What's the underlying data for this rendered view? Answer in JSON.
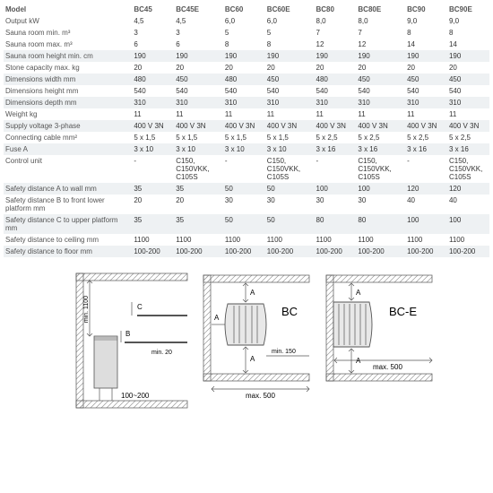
{
  "table": {
    "header": [
      "Model",
      "BC45",
      "BC45E",
      "",
      "BC60",
      "BC60E",
      "",
      "BC80",
      "BC80E",
      "",
      "BC90",
      "BC90E"
    ],
    "rows": [
      {
        "label": "Output kW",
        "v": [
          "4,5",
          "4,5",
          "",
          "6,0",
          "6,0",
          "",
          "8,0",
          "8,0",
          "",
          "9,0",
          "9,0"
        ]
      },
      {
        "label": "Sauna room min. m³",
        "sup": "3",
        "v": [
          "3",
          "3",
          "",
          "5",
          "5",
          "",
          "7",
          "7",
          "",
          "8",
          "8"
        ]
      },
      {
        "label": "Sauna room max. m³",
        "sup": "3",
        "v": [
          "6",
          "6",
          "",
          "8",
          "8",
          "",
          "12",
          "12",
          "",
          "14",
          "14"
        ]
      },
      {
        "label": "Sauna room height min. cm",
        "alt": true,
        "v": [
          "190",
          "190",
          "",
          "190",
          "190",
          "",
          "190",
          "190",
          "",
          "190",
          "190"
        ]
      },
      {
        "label": "Stone capacity max. kg",
        "v": [
          "20",
          "20",
          "",
          "20",
          "20",
          "",
          "20",
          "20",
          "",
          "20",
          "20"
        ]
      },
      {
        "label": "Dimensions width mm",
        "alt": true,
        "v": [
          "480",
          "450",
          "",
          "480",
          "450",
          "",
          "480",
          "450",
          "",
          "450",
          "450"
        ]
      },
      {
        "label": "Dimensions height mm",
        "v": [
          "540",
          "540",
          "",
          "540",
          "540",
          "",
          "540",
          "540",
          "",
          "540",
          "540"
        ]
      },
      {
        "label": "Dimensions depth mm",
        "alt": true,
        "v": [
          "310",
          "310",
          "",
          "310",
          "310",
          "",
          "310",
          "310",
          "",
          "310",
          "310"
        ]
      },
      {
        "label": "Weight kg",
        "v": [
          "11",
          "11",
          "",
          "11",
          "11",
          "",
          "11",
          "11",
          "",
          "11",
          "11"
        ]
      },
      {
        "label": "Supply voltage 3-phase",
        "alt": true,
        "v": [
          "400 V 3N",
          "400 V 3N",
          "",
          "400 V 3N",
          "400 V 3N",
          "",
          "400 V 3N",
          "400 V 3N",
          "",
          "400 V 3N",
          "400 V 3N"
        ]
      },
      {
        "label": "Connecting cable mm²",
        "sup": "2",
        "v": [
          "5 x 1,5",
          "5 x 1,5",
          "",
          "5 x 1,5",
          "5 x 1,5",
          "",
          "5 x 2,5",
          "5 x 2,5",
          "",
          "5 x 2,5",
          "5 x 2,5"
        ]
      },
      {
        "label": "Fuse A",
        "alt": true,
        "v": [
          "3 x 10",
          "3 x 10",
          "",
          "3 x 10",
          "3 x 10",
          "",
          "3 x 16",
          "3 x 16",
          "",
          "3 x 16",
          "3 x 16"
        ]
      },
      {
        "label": "Control unit",
        "v": [
          "-",
          "C150, C150VKK, C105S",
          "",
          "-",
          "C150, C150VKK, C105S",
          "",
          "-",
          "C150, C150VKK, C105S",
          "",
          "-",
          "C150, C150VKK, C105S"
        ]
      },
      {
        "label": "Safety distance A to wall mm",
        "alt": true,
        "v": [
          "35",
          "35",
          "",
          "50",
          "50",
          "",
          "100",
          "100",
          "",
          "120",
          "120"
        ]
      },
      {
        "label": "Safety distance B to front lower platform mm",
        "v": [
          "20",
          "20",
          "",
          "30",
          "30",
          "",
          "30",
          "30",
          "",
          "40",
          "40"
        ]
      },
      {
        "label": "Safety distance C to upper platform mm",
        "alt": true,
        "v": [
          "35",
          "35",
          "",
          "50",
          "50",
          "",
          "80",
          "80",
          "",
          "100",
          "100"
        ]
      },
      {
        "label": "Safety distance to ceiling mm",
        "v": [
          "1100",
          "1100",
          "",
          "1100",
          "1100",
          "",
          "1100",
          "1100",
          "",
          "1100",
          "1100"
        ]
      },
      {
        "label": "Safety distance to floor mm",
        "alt": true,
        "v": [
          "100-200",
          "100-200",
          "",
          "100-200",
          "100-200",
          "",
          "100-200",
          "100-200",
          "",
          "100-200",
          "100-200"
        ]
      }
    ]
  },
  "diagrams": {
    "side": {
      "min_height": "min. 1100",
      "c": "C",
      "b": "B",
      "min_gap": "min. 20",
      "floor": "100~200"
    },
    "bc": {
      "title": "BC",
      "a": "A",
      "min": "min. 150",
      "max": "max. 500"
    },
    "bce": {
      "title": "BC-E",
      "a": "A",
      "max": "max. 500"
    },
    "colors": {
      "stroke": "#555555",
      "hatch": "#999999",
      "fill": "#e8e8e8",
      "text": "#333333"
    }
  }
}
